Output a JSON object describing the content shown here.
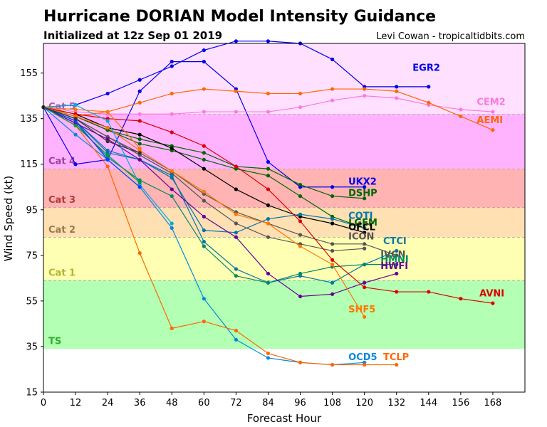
{
  "header": {
    "title": "Hurricane DORIAN Model Intensity Guidance",
    "subtitle": "Initialized at 12z Sep 01 2019",
    "credit": "Levi Cowan - tropicaltidbits.com"
  },
  "chart_data": {
    "type": "line",
    "xlabel": "Forecast Hour",
    "ylabel": "Wind Speed (kt)",
    "xlim": [
      0,
      180
    ],
    "ylim": [
      15,
      168
    ],
    "xticks": [
      0,
      12,
      24,
      36,
      48,
      60,
      72,
      84,
      96,
      108,
      120,
      132,
      144,
      156,
      168
    ],
    "yticks": [
      15,
      35,
      55,
      75,
      95,
      115,
      135,
      155
    ],
    "grid": false,
    "bands": [
      {
        "label": "TS",
        "from": 34,
        "to": 64,
        "color": "#b3ffb3",
        "label_color": "#33aa33",
        "label_y": 36
      },
      {
        "label": "Cat 1",
        "from": 64,
        "to": 83,
        "color": "#ffffb3",
        "label_color": "#b3b333",
        "label_y": 66
      },
      {
        "label": "Cat 2",
        "from": 83,
        "to": 96,
        "color": "#ffe0b3",
        "label_color": "#9a7a4a",
        "label_y": 85
      },
      {
        "label": "Cat 3",
        "from": 96,
        "to": 113,
        "color": "#ffb3b3",
        "label_color": "#b33a3a",
        "label_y": 98
      },
      {
        "label": "Cat 4",
        "from": 113,
        "to": 137,
        "color": "#ffb3ff",
        "label_color": "#a040a0",
        "label_y": 115
      },
      {
        "label": "Cat 5",
        "from": 137,
        "to": 168,
        "color": "#ffe0ff",
        "label_color": "#a060a0",
        "label_y": 139
      }
    ],
    "series": [
      {
        "name": "EGR2",
        "color": "#0000ee",
        "label_x": 138,
        "label_y": 156,
        "x": [
          0,
          12,
          24,
          36,
          48,
          60,
          72,
          84,
          96,
          108,
          120,
          132,
          144
        ],
        "y": [
          140,
          141,
          146,
          152,
          158,
          165,
          169,
          169,
          168,
          161,
          149,
          149,
          149
        ]
      },
      {
        "name": "UKX2",
        "color": "#0000ee",
        "label_x": 114,
        "label_y": 106,
        "x": [
          0,
          12,
          24,
          36,
          48,
          60,
          72,
          84,
          96,
          108,
          120
        ],
        "y": [
          140,
          115,
          117,
          147,
          160,
          160,
          148,
          116,
          105,
          105,
          105
        ]
      },
      {
        "name": "CEM2",
        "color": "#ff77dd",
        "label_x": 162,
        "label_y": 141,
        "x": [
          0,
          12,
          24,
          36,
          48,
          60,
          72,
          84,
          96,
          108,
          120,
          132,
          144,
          156,
          168
        ],
        "y": [
          140,
          138,
          137,
          137,
          137,
          138,
          138,
          138,
          140,
          143,
          145,
          144,
          141,
          139,
          138
        ]
      },
      {
        "name": "AEMI",
        "color": "#ff6600",
        "label_x": 162,
        "label_y": 133,
        "x": [
          0,
          12,
          24,
          36,
          48,
          60,
          72,
          84,
          96,
          108,
          120,
          132,
          144,
          156,
          168
        ],
        "y": [
          140,
          136,
          138,
          142,
          146,
          148,
          147,
          146,
          146,
          148,
          148,
          147,
          142,
          136,
          130
        ]
      },
      {
        "name": "DSHP",
        "color": "#006600",
        "label_x": 114,
        "label_y": 101,
        "x": [
          0,
          12,
          24,
          36,
          48,
          60,
          72,
          84,
          96,
          108,
          120
        ],
        "y": [
          140,
          136,
          130,
          126,
          123,
          120,
          114,
          113,
          106,
          101,
          100
        ]
      },
      {
        "name": "LGEM",
        "color": "#006600",
        "label_x": 114,
        "label_y": 88,
        "x": [
          0,
          12,
          24,
          36,
          48,
          60,
          72,
          84,
          96,
          108,
          120
        ],
        "y": [
          140,
          136,
          130,
          124,
          121,
          117,
          113,
          110,
          101,
          92,
          87
        ]
      },
      {
        "name": "OFCL",
        "color": "#000000",
        "label_x": 114,
        "label_y": 86,
        "x": [
          0,
          12,
          24,
          36,
          48,
          60,
          72,
          84,
          96,
          108,
          120
        ],
        "y": [
          140,
          137,
          131,
          128,
          122,
          113,
          104,
          97,
          92,
          89,
          85
        ]
      },
      {
        "name": "COTI",
        "color": "#0077aa",
        "label_x": 114,
        "label_y": 91,
        "x": [
          0,
          12,
          24,
          36,
          48,
          60,
          72,
          84,
          96,
          108,
          120
        ],
        "y": [
          140,
          134,
          121,
          117,
          109,
          86,
          85,
          91,
          93,
          91,
          87
        ]
      },
      {
        "name": "ICON",
        "color": "#555555",
        "label_x": 114,
        "label_y": 82,
        "x": [
          0,
          12,
          24,
          36,
          48,
          60,
          72,
          84,
          96,
          108,
          120
        ],
        "y": [
          140,
          135,
          127,
          119,
          111,
          99,
          89,
          83,
          80,
          77,
          78
        ]
      },
      {
        "name": "IVCN",
        "color": "#555555",
        "label_x": 126,
        "label_y": 74,
        "x": [
          0,
          12,
          24,
          36,
          48,
          60,
          72,
          84,
          96,
          108,
          120,
          132
        ],
        "y": [
          140,
          135,
          127,
          120,
          112,
          102,
          94,
          89,
          84,
          80,
          80,
          75
        ]
      },
      {
        "name": "CTCI",
        "color": "#0077aa",
        "label_x": 127,
        "label_y": 80,
        "x": [
          0,
          12,
          24,
          36,
          48,
          60,
          72,
          84,
          96,
          108,
          120,
          132
        ],
        "y": [
          140,
          134,
          120,
          117,
          110,
          81,
          69,
          63,
          66,
          63,
          71,
          77
        ]
      },
      {
        "name": "HMNI",
        "color": "#008866",
        "label_x": 126,
        "label_y": 72,
        "x": [
          0,
          12,
          24,
          36,
          48,
          60,
          72,
          84,
          96,
          108,
          120,
          132
        ],
        "y": [
          140,
          133,
          118,
          108,
          101,
          79,
          66,
          63,
          67,
          70,
          71,
          71
        ]
      },
      {
        "name": "HWFI",
        "color": "#660099",
        "label_x": 126,
        "label_y": 69,
        "x": [
          0,
          12,
          24,
          36,
          48,
          60,
          72,
          84,
          96,
          108,
          120,
          132
        ],
        "y": [
          140,
          133,
          126,
          117,
          104,
          92,
          83,
          67,
          57,
          58,
          63,
          67
        ]
      },
      {
        "name": "AVNI",
        "color": "#dd0000",
        "label_x": 163,
        "label_y": 57,
        "x": [
          0,
          12,
          24,
          36,
          48,
          60,
          72,
          84,
          96,
          108,
          120,
          132,
          144,
          156,
          168
        ],
        "y": [
          140,
          137,
          135,
          134,
          129,
          123,
          114,
          104,
          90,
          73,
          61,
          59,
          59,
          56,
          54
        ]
      },
      {
        "name": "SHF5",
        "color": "#ff7700",
        "label_x": 114,
        "label_y": 50,
        "x": [
          0,
          12,
          24,
          36,
          48,
          60,
          72,
          84,
          96,
          108,
          120
        ],
        "y": [
          140,
          136,
          131,
          121,
          112,
          103,
          93,
          89,
          79,
          71,
          48
        ]
      },
      {
        "name": "OCD5",
        "color": "#0088dd",
        "label_x": 114,
        "label_y": 29,
        "x": [
          0,
          12,
          24,
          36,
          48,
          60,
          72,
          84,
          96,
          108,
          120
        ],
        "y": [
          140,
          128,
          117,
          105,
          87,
          56,
          38,
          30,
          28,
          27,
          28
        ]
      },
      {
        "name": "TCLP",
        "color": "#ff6600",
        "label_x": 127,
        "label_y": 29,
        "x": [
          0,
          12,
          24,
          36,
          48,
          60,
          72,
          84,
          96,
          108,
          120,
          132
        ],
        "y": [
          140,
          132,
          114,
          76,
          43,
          46,
          42,
          32,
          28,
          27,
          27,
          27
        ]
      },
      {
        "name": "",
        "color": "#00aadd",
        "x": [
          0,
          12,
          24,
          36,
          48
        ],
        "y": [
          140,
          141,
          134,
          106,
          89
        ]
      },
      {
        "name": "",
        "color": "#009944",
        "x": [
          0,
          12,
          24,
          36
        ],
        "y": [
          140,
          132,
          119,
          107
        ]
      },
      {
        "name": "",
        "color": "#0044ff",
        "x": [
          0,
          12,
          24,
          36
        ],
        "y": [
          140,
          134,
          117,
          105
        ]
      },
      {
        "name": "",
        "color": "#ff7700",
        "x": [
          0,
          12,
          24,
          36
        ],
        "y": [
          140,
          139,
          138,
          122
        ]
      },
      {
        "name": "",
        "color": "#333333",
        "x": [
          0,
          12,
          24,
          36
        ],
        "y": [
          140,
          135,
          125,
          120
        ]
      }
    ]
  }
}
